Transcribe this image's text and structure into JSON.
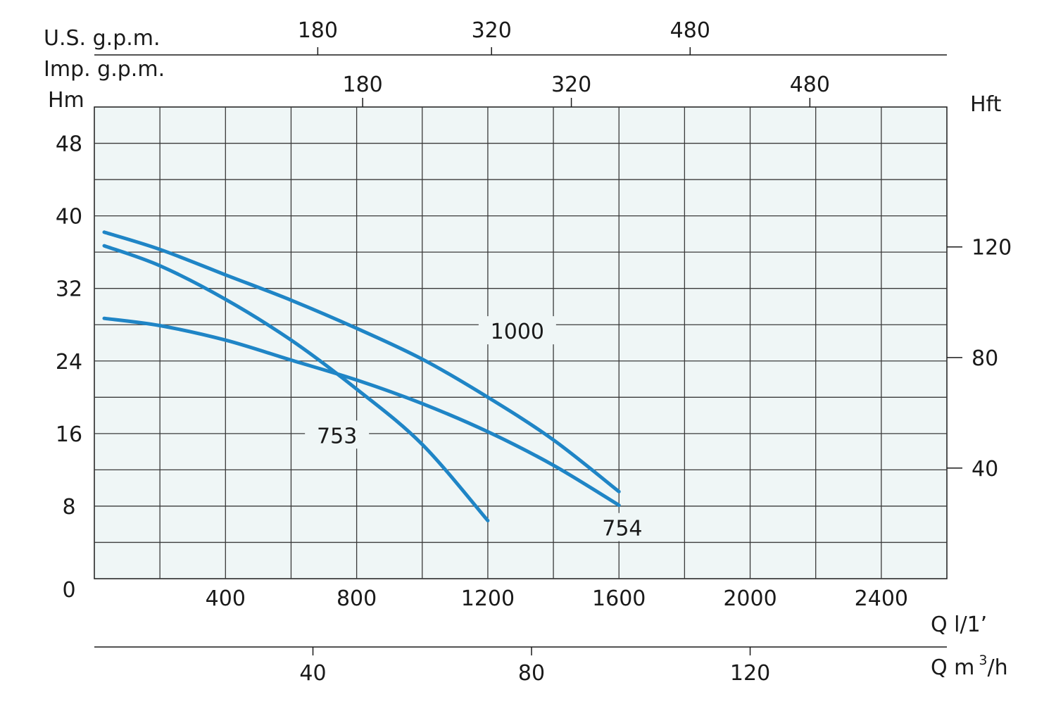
{
  "chart_data": {
    "type": "line",
    "x_unit": "Q l/1’",
    "y_unit_left": "Hm",
    "y_unit_right": "Hft",
    "top_unit_1": "U.S. g.p.m.",
    "top_unit_2": "Imp. g.p.m.",
    "bottom_unit_2": {
      "main": "Q m",
      "sup": "3",
      "tail": "/h"
    },
    "zero_label": "0",
    "xlim": [
      0,
      2600
    ],
    "ylim": [
      0,
      52
    ],
    "x_ticks": [
      "400",
      "800",
      "1200",
      "1600",
      "2000",
      "2400"
    ],
    "y_ticks": [
      "8",
      "16",
      "24",
      "32",
      "40",
      "48"
    ],
    "y_right_ticks": [
      "40",
      "80",
      "120"
    ],
    "us_gpm_ticks": [
      "180",
      "320",
      "480"
    ],
    "imp_gpm_ticks": [
      "180",
      "320",
      "480"
    ],
    "m3h_ticks": [
      "40",
      "80",
      "120"
    ],
    "grid": true,
    "series": [
      {
        "name": "1000",
        "x": [
          30,
          200,
          400,
          600,
          800,
          1000,
          1200,
          1400,
          1600
        ],
        "y": [
          38.2,
          36.3,
          33.5,
          30.7,
          27.6,
          24.2,
          20.0,
          15.3,
          9.6
        ]
      },
      {
        "name": "753",
        "x": [
          30,
          200,
          400,
          600,
          800,
          1000,
          1200
        ],
        "y": [
          36.7,
          34.5,
          30.8,
          26.3,
          20.9,
          14.8,
          6.4
        ]
      },
      {
        "name": "754",
        "x": [
          30,
          200,
          400,
          600,
          800,
          1000,
          1200,
          1400,
          1600
        ],
        "y": [
          28.7,
          27.9,
          26.3,
          24.1,
          21.9,
          19.3,
          16.2,
          12.5,
          8.1
        ]
      }
    ]
  }
}
